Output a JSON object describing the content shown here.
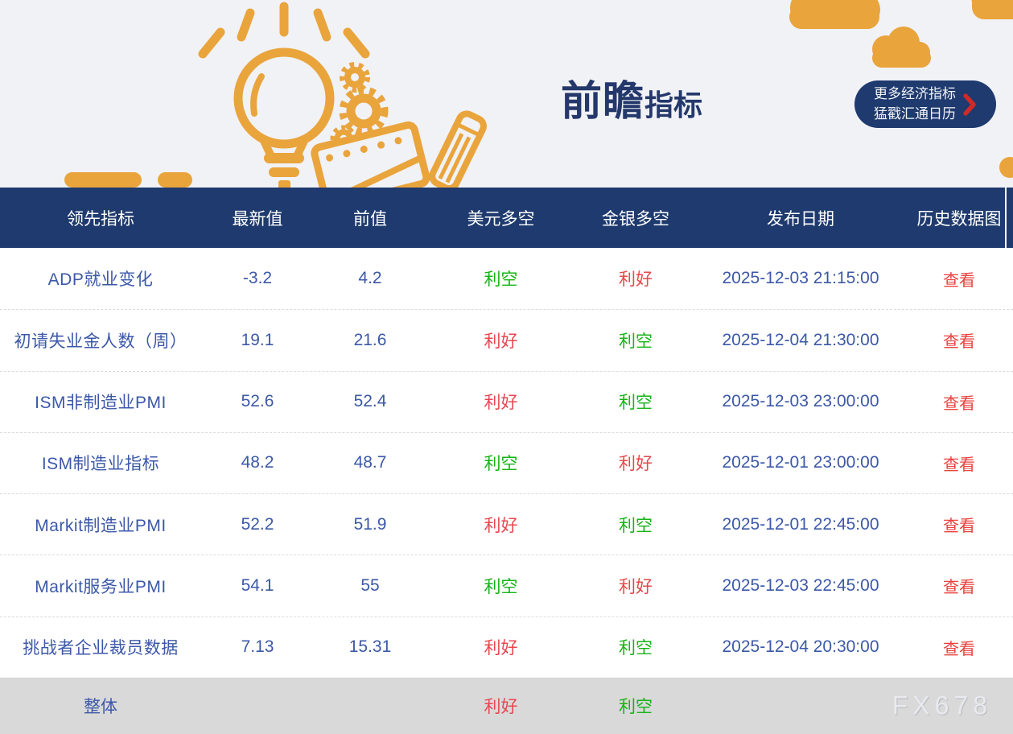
{
  "banner": {
    "title_primary": "前瞻",
    "title_secondary": "指标",
    "button": {
      "line1": "更多经济指标",
      "line2": "猛戳汇通日历"
    }
  },
  "table": {
    "headers": [
      "领先指标",
      "最新值",
      "前值",
      "美元多空",
      "金银多空",
      "发布日期",
      "历史数据图"
    ],
    "rows": [
      {
        "indicator": "ADP就业变化",
        "latest": "-3.2",
        "previous": "4.2",
        "usd": "利空",
        "usd_tone": "bearish",
        "gold": "利好",
        "gold_tone": "bullish",
        "date": "2025-12-03 21:15:00",
        "action": "查看"
      },
      {
        "indicator": "初请失业金人数（周）",
        "latest": "19.1",
        "previous": "21.6",
        "usd": "利好",
        "usd_tone": "bullish",
        "gold": "利空",
        "gold_tone": "bearish",
        "date": "2025-12-04 21:30:00",
        "action": "查看"
      },
      {
        "indicator": "ISM非制造业PMI",
        "latest": "52.6",
        "previous": "52.4",
        "usd": "利好",
        "usd_tone": "bullish",
        "gold": "利空",
        "gold_tone": "bearish",
        "date": "2025-12-03 23:00:00",
        "action": "查看"
      },
      {
        "indicator": "ISM制造业指标",
        "latest": "48.2",
        "previous": "48.7",
        "usd": "利空",
        "usd_tone": "bearish",
        "gold": "利好",
        "gold_tone": "bullish",
        "date": "2025-12-01 23:00:00",
        "action": "查看"
      },
      {
        "indicator": "Markit制造业PMI",
        "latest": "52.2",
        "previous": "51.9",
        "usd": "利好",
        "usd_tone": "bullish",
        "gold": "利空",
        "gold_tone": "bearish",
        "date": "2025-12-01 22:45:00",
        "action": "查看"
      },
      {
        "indicator": "Markit服务业PMI",
        "latest": "54.1",
        "previous": "55",
        "usd": "利空",
        "usd_tone": "bearish",
        "gold": "利好",
        "gold_tone": "bullish",
        "date": "2025-12-03 22:45:00",
        "action": "查看"
      },
      {
        "indicator": "挑战者企业裁员数据",
        "latest": "7.13",
        "previous": "15.31",
        "usd": "利好",
        "usd_tone": "bullish",
        "gold": "利空",
        "gold_tone": "bearish",
        "date": "2025-12-04 20:30:00",
        "action": "查看"
      }
    ],
    "footer": {
      "label": "整体",
      "usd": "利好",
      "usd_tone": "bullish",
      "gold": "利空",
      "gold_tone": "bearish",
      "watermark": "FX678"
    }
  },
  "icons": {
    "button_arrow": "chevron-right-icon",
    "banner_art": [
      "lightbulb-icon",
      "gear-icon",
      "cloud-icon",
      "notepad-icon",
      "pencil-icon"
    ]
  },
  "colors": {
    "navy": "#1e3a6e",
    "banner_bg": "#f1f2f6",
    "orange": "#e9a43c",
    "text_blue": "#3c58a8",
    "bullish_red": "#e6484e",
    "bearish_green": "#17b317",
    "view_link_red": "#e8433f",
    "footer_bg": "#d9d9d9",
    "watermark": "#e8eaef"
  }
}
